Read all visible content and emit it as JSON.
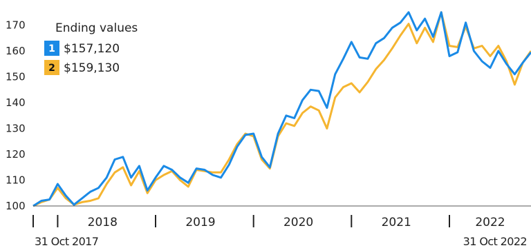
{
  "chart_data": {
    "type": "line",
    "title": "",
    "xlabel": "",
    "ylabel": "",
    "ylim": [
      100,
      176
    ],
    "xlim": [
      "2017-10",
      "2022-11"
    ],
    "y_ticks": [
      100,
      110,
      120,
      130,
      140,
      150,
      160,
      170
    ],
    "x_tick_labels": [
      "2018",
      "2019",
      "2020",
      "2021",
      "2022"
    ],
    "start_label": "31 Oct 2017",
    "end_label": "31 Oct 2022",
    "grid": false,
    "legend": {
      "title": "Ending values",
      "position": "top-left",
      "entries": [
        {
          "badge": "1",
          "value": "$157,120",
          "color": "#1a8ae6"
        },
        {
          "badge": "2",
          "value": "$159,130",
          "color": "#f5b530"
        }
      ]
    },
    "x": [
      "2017-10",
      "2017-11",
      "2017-12",
      "2018-01",
      "2018-02",
      "2018-03",
      "2018-04",
      "2018-05",
      "2018-06",
      "2018-07",
      "2018-08",
      "2018-09",
      "2018-10",
      "2018-11",
      "2018-12",
      "2019-01",
      "2019-02",
      "2019-03",
      "2019-04",
      "2019-05",
      "2019-06",
      "2019-07",
      "2019-08",
      "2019-09",
      "2019-10",
      "2019-11",
      "2019-12",
      "2020-01",
      "2020-02",
      "2020-03",
      "2020-04",
      "2020-05",
      "2020-06",
      "2020-07",
      "2020-08",
      "2020-09",
      "2020-10",
      "2020-11",
      "2020-12",
      "2021-01",
      "2021-02",
      "2021-03",
      "2021-04",
      "2021-05",
      "2021-06",
      "2021-07",
      "2021-08",
      "2021-09",
      "2021-10",
      "2021-11",
      "2021-12",
      "2022-01",
      "2022-02",
      "2022-03",
      "2022-04",
      "2022-05",
      "2022-06",
      "2022-07",
      "2022-08",
      "2022-09",
      "2022-10",
      "2022-11"
    ],
    "series": [
      {
        "name": "1",
        "color": "#1a8ae6",
        "values": [
          100,
          102,
          102.5,
          108.5,
          104,
          100.5,
          103,
          105.5,
          107,
          111,
          118,
          119,
          111,
          115.5,
          106,
          111,
          115.5,
          114,
          111,
          109,
          114.5,
          114,
          112,
          111,
          116,
          123,
          127.5,
          128,
          119,
          115,
          128,
          135,
          134,
          141,
          145,
          144.5,
          138,
          151,
          157,
          163.5,
          157.5,
          157,
          163,
          165,
          169,
          171,
          175,
          168,
          172.5,
          165.5,
          175,
          158,
          159.5,
          171,
          160,
          156,
          153.5,
          160,
          155,
          151,
          155.5,
          159.5
        ]
      },
      {
        "name": "2",
        "color": "#f5b530",
        "values": [
          100,
          101.5,
          102.5,
          107,
          103,
          100.5,
          101.5,
          102,
          103,
          108.5,
          113,
          115,
          108,
          113.5,
          105,
          110,
          112,
          113.5,
          110,
          107.5,
          114,
          113.5,
          113,
          113,
          118,
          124,
          128,
          127,
          118,
          114.5,
          127,
          132,
          131,
          136,
          138.5,
          137,
          130,
          142,
          146,
          147.5,
          144,
          148,
          153,
          156.5,
          161,
          166,
          170.5,
          163,
          169,
          163.5,
          175,
          162,
          161.5,
          169.5,
          161,
          162,
          158,
          162,
          156,
          147,
          155.5,
          160
        ]
      }
    ]
  }
}
